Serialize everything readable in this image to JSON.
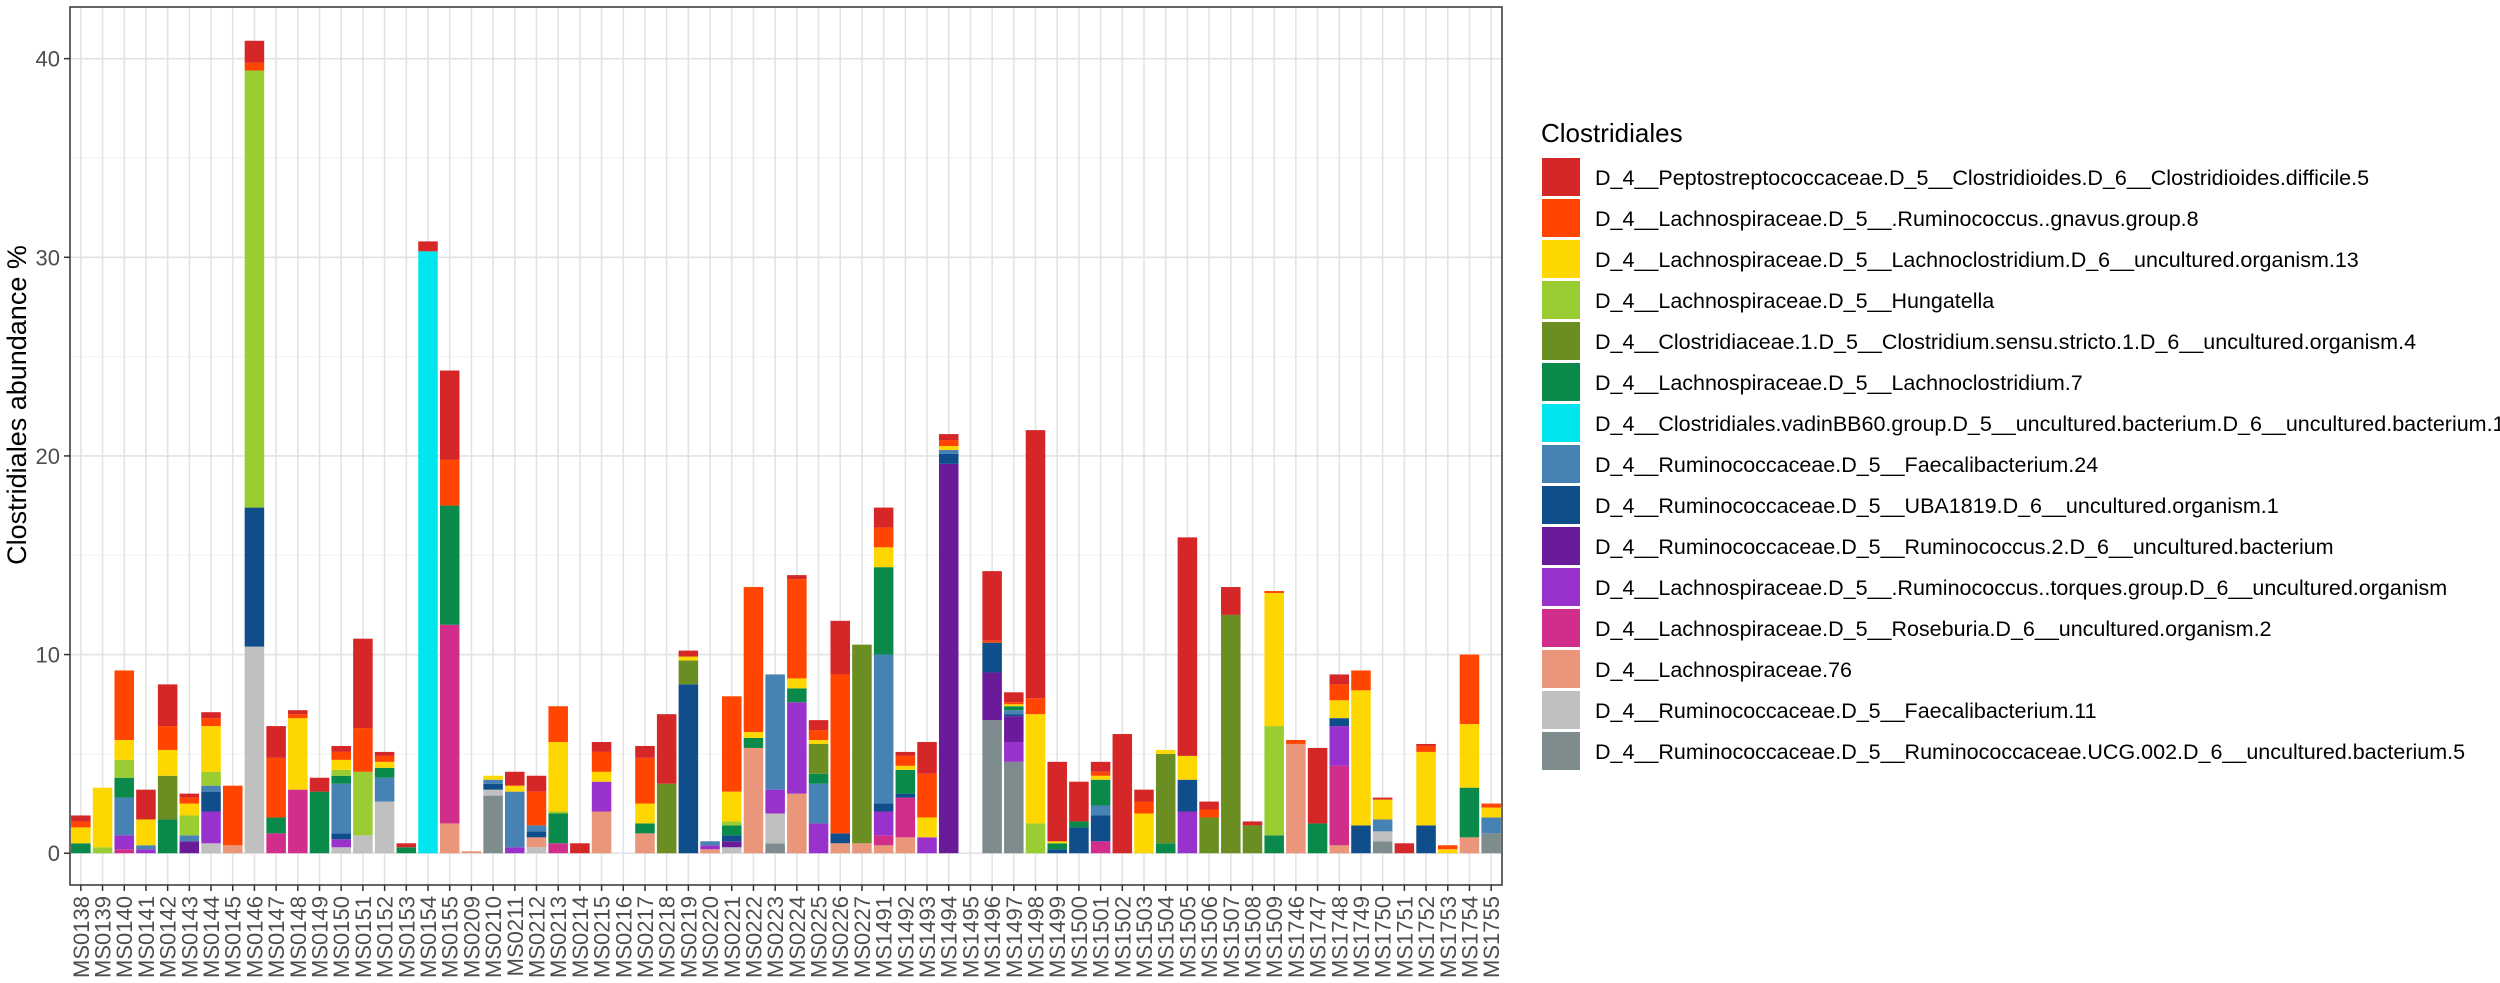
{
  "chart_data": {
    "type": "bar",
    "stacked": true,
    "title": "",
    "xlabel": "",
    "ylabel": "Clostridiales abundance %",
    "ylim": [
      -1.6,
      42.6
    ],
    "yticks": [
      0,
      10,
      20,
      30,
      40
    ],
    "grid": true,
    "legend_position": "right",
    "legend_title": "Clostridiales",
    "categories": [
      "MS0138",
      "MS0139",
      "MS0140",
      "MS0141",
      "MS0142",
      "MS0143",
      "MS0144",
      "MS0145",
      "MS0146",
      "MS0147",
      "MS0148",
      "MS0149",
      "MS0150",
      "MS0151",
      "MS0152",
      "MS0153",
      "MS0154",
      "MS0155",
      "MS0209",
      "MS0210",
      "MS0211",
      "MS0212",
      "MS0213",
      "MS0214",
      "MS0215",
      "MS0216",
      "MS0217",
      "MS0218",
      "MS0219",
      "MS0220",
      "MS0221",
      "MS0222",
      "MS0223",
      "MS0224",
      "MS0225",
      "MS0226",
      "MS0227",
      "MS1491",
      "MS1492",
      "MS1493",
      "MS1494",
      "MS1495",
      "MS1496",
      "MS1497",
      "MS1498",
      "MS1499",
      "MS1500",
      "MS1501",
      "MS1502",
      "MS1503",
      "MS1504",
      "MS1505",
      "MS1506",
      "MS1507",
      "MS1508",
      "MS1509",
      "MS1746",
      "MS1747",
      "MS1748",
      "MS1749",
      "MS1750",
      "MS1751",
      "MS1752",
      "MS1753",
      "MS1754",
      "MS1755"
    ],
    "series": [
      {
        "name": "D_4__Peptostreptococcaceae.D_5__Clostridioides.D_6__Clostridioides.difficile.5",
        "color": "#d62728",
        "values": [
          0.3,
          0,
          0,
          1.5,
          2.1,
          0.2,
          0.3,
          0,
          1.1,
          1.6,
          0.2,
          0.7,
          0.3,
          4.5,
          0.2,
          0.2,
          0.5,
          4.5,
          0,
          0,
          0.7,
          0.8,
          0,
          0.5,
          0.5,
          0,
          0.6,
          3.5,
          0.3,
          0,
          0,
          0,
          0,
          0.2,
          0.5,
          2.7,
          0,
          1.0,
          0.2,
          1.6,
          0.3,
          0,
          3.5,
          0.5,
          13.5,
          4.0,
          2.0,
          0.5,
          6.0,
          0.6,
          0,
          11.0,
          0.4,
          1.4,
          0.2,
          0,
          0,
          3.8,
          0.5,
          0,
          0.1,
          0.5,
          0.1,
          0,
          0,
          0
        ]
      },
      {
        "name": "D_4__Lachnospiraceae.D_5__.Ruminococcus..gnavus.group.8",
        "color": "#ff4500",
        "values": [
          0.3,
          0,
          3.5,
          0,
          1.2,
          0.3,
          0.4,
          3.0,
          0.4,
          3.0,
          0.2,
          0,
          0.4,
          2.2,
          0.3,
          0,
          0,
          2.3,
          0,
          0,
          0,
          1.7,
          1.8,
          0,
          1.0,
          0,
          2.3,
          0,
          0,
          0,
          4.8,
          7.3,
          0,
          5.0,
          0.5,
          8.0,
          0,
          1.0,
          0.5,
          2.2,
          0.3,
          0,
          0.1,
          0.1,
          0.8,
          0,
          0,
          0.2,
          0,
          0.6,
          0,
          0,
          0.4,
          0,
          0,
          0.1,
          0.2,
          0,
          0.8,
          1.0,
          0,
          0,
          0.3,
          0.2,
          3.5,
          0.2
        ]
      },
      {
        "name": "D_4__Lachnospiraceae.D_5__Lachnoclostridium.D_6__uncultured.organism.13",
        "color": "#ffd700",
        "values": [
          0.8,
          3.0,
          1.0,
          1.3,
          1.3,
          0.6,
          2.3,
          0,
          0,
          0,
          3.6,
          0,
          0.5,
          0,
          0.3,
          0,
          0,
          0,
          0,
          0.2,
          0.3,
          0,
          3.5,
          0,
          0.5,
          0,
          1.0,
          0,
          0.2,
          0,
          1.5,
          0.3,
          0,
          0.5,
          0.2,
          0,
          0,
          1.0,
          0.2,
          1.0,
          0.2,
          0,
          0,
          0.1,
          5.5,
          0.1,
          0,
          0.2,
          0,
          2.0,
          0.2,
          1.2,
          0,
          0,
          0,
          6.7,
          0,
          0,
          0.9,
          6.8,
          1.0,
          0,
          3.7,
          0.2,
          3.2,
          0.5
        ]
      },
      {
        "name": "D_4__Lachnospiraceae.D_5__Hungatella",
        "color": "#9acd32",
        "values": [
          0,
          0.3,
          0.9,
          0,
          0,
          1.0,
          0.7,
          0,
          22.0,
          0,
          0,
          0,
          0.3,
          3.2,
          0,
          0,
          0,
          0,
          0,
          0,
          0,
          0,
          0.1,
          0,
          0,
          0,
          0,
          0,
          0,
          0,
          0.2,
          0,
          0,
          0,
          0,
          0,
          0,
          0,
          0,
          0,
          0,
          0,
          0,
          0,
          1.5,
          0,
          0,
          0,
          0,
          0,
          0,
          0,
          0,
          0,
          0,
          5.5,
          0,
          0,
          0,
          0,
          0,
          0,
          0,
          0,
          0,
          0
        ]
      },
      {
        "name": "D_4__Clostridiaceae.1.D_5__Clostridium.sensu.stricto.1.D_6__uncultured.organism.4",
        "color": "#6b8e23",
        "values": [
          0,
          0,
          0,
          0,
          2.2,
          0,
          0,
          0,
          0,
          0,
          0,
          0,
          0,
          0,
          0,
          0,
          0,
          0,
          0,
          0,
          0,
          0,
          0,
          0,
          0,
          0,
          0,
          3.5,
          1.2,
          0,
          0,
          0,
          0,
          0,
          1.5,
          0,
          10.0,
          0,
          0,
          0,
          0,
          0,
          0,
          0,
          0,
          0,
          0,
          0,
          0,
          0,
          4.5,
          0,
          1.8,
          12.0,
          1.4,
          0,
          0,
          0,
          0,
          0,
          0,
          0,
          0,
          0,
          0,
          0
        ]
      },
      {
        "name": "D_4__Lachnospiraceae.D_5__Lachnoclostridium.7",
        "color": "#0a8a4a",
        "values": [
          0.5,
          0,
          1.0,
          0,
          1.7,
          0,
          0,
          0,
          0,
          0.8,
          0,
          3.1,
          0.4,
          0,
          0.5,
          0.3,
          0,
          6.0,
          0,
          0,
          0,
          0,
          1.5,
          0,
          0,
          0,
          0.5,
          0,
          0,
          0,
          0.5,
          0.5,
          0,
          0.7,
          0.5,
          0,
          0,
          4.4,
          1.2,
          0,
          0,
          0,
          0,
          0.2,
          0,
          0.3,
          0.3,
          1.3,
          0,
          0,
          0.5,
          0,
          0,
          0,
          0,
          0.9,
          0,
          1.5,
          0,
          0,
          0,
          0,
          0,
          0,
          2.5,
          0
        ]
      },
      {
        "name": "D_4__Clostridiales.vadinBB60.group.D_5__uncultured.bacterium.D_6__uncultured.bacterium.1",
        "color": "#00e5ee",
        "values": [
          0,
          0,
          0,
          0,
          0,
          0,
          0,
          0,
          0,
          0,
          0,
          0,
          0,
          0,
          0,
          0,
          30.3,
          0,
          0,
          0,
          0,
          0,
          0,
          0,
          0,
          0,
          0,
          0,
          0,
          0,
          0,
          0,
          0,
          0,
          0,
          0,
          0,
          0,
          0,
          0,
          0,
          0,
          0,
          0,
          0,
          0,
          0,
          0,
          0,
          0,
          0,
          0,
          0,
          0,
          0,
          0,
          0,
          0,
          0,
          0,
          0,
          0,
          0,
          0,
          0,
          0
        ]
      },
      {
        "name": "D_4__Ruminococcaceae.D_5__Faecalibacterium.24",
        "color": "#4682b4",
        "values": [
          0,
          0,
          1.9,
          0.2,
          0,
          0.3,
          0.3,
          0,
          0,
          0,
          0,
          0,
          2.5,
          0,
          1.2,
          0,
          0,
          0,
          0,
          0.2,
          2.8,
          0.3,
          0,
          0,
          0,
          0,
          0,
          0,
          0,
          0.2,
          0,
          0,
          5.8,
          0,
          2.0,
          0,
          0,
          7.5,
          0,
          0,
          0.2,
          0,
          0,
          0.2,
          0,
          0,
          0,
          0.5,
          0,
          0,
          0,
          0,
          0,
          0,
          0,
          0,
          0,
          0,
          0,
          0,
          0.6,
          0,
          0,
          0,
          0,
          0.8
        ]
      },
      {
        "name": "D_4__Ruminococcaceae.D_5__UBA1819.D_6__uncultured.organism.1",
        "color": "#104e8b",
        "values": [
          0,
          0,
          0,
          0,
          0,
          0,
          1.0,
          0,
          7.0,
          0,
          0,
          0,
          0.3,
          0,
          0,
          0,
          0,
          0,
          0,
          0.3,
          0,
          0.3,
          0,
          0,
          0,
          0,
          0,
          0,
          8.5,
          0,
          0.3,
          0,
          0,
          0,
          0,
          0.5,
          0,
          0.4,
          0.2,
          0,
          0.5,
          0,
          1.5,
          0.1,
          0,
          0.2,
          1.3,
          1.3,
          0,
          0,
          0,
          1.6,
          0,
          0,
          0,
          0,
          0,
          0,
          0.4,
          1.4,
          0,
          0,
          1.4,
          0,
          0,
          0
        ]
      },
      {
        "name": "D_4__Ruminococcaceae.D_5__Ruminococcus.2.D_6__uncultured.bacterium",
        "color": "#6a1b9a",
        "values": [
          0,
          0,
          0,
          0,
          0,
          0.6,
          0,
          0,
          0,
          0,
          0,
          0,
          0,
          0,
          0,
          0,
          0,
          0,
          0,
          0,
          0,
          0,
          0,
          0,
          0,
          0,
          0,
          0,
          0,
          0,
          0.3,
          0,
          0,
          0,
          0,
          0,
          0,
          0,
          0,
          0,
          19.6,
          0,
          2.4,
          1.3,
          0,
          0,
          0,
          0,
          0,
          0,
          0,
          0,
          0,
          0,
          0,
          0,
          0,
          0,
          0,
          0,
          0,
          0,
          0,
          0,
          0,
          0
        ]
      },
      {
        "name": "D_4__Lachnospiraceae.D_5__.Ruminococcus..torques.group.D_6__uncultured.organism",
        "color": "#9932cc",
        "values": [
          0,
          0,
          0.7,
          0.2,
          0,
          0,
          1.6,
          0,
          0,
          0,
          0,
          0,
          0.4,
          0,
          0,
          0,
          0,
          0,
          0,
          0,
          0.3,
          0,
          0,
          0,
          1.5,
          0,
          0,
          0,
          0,
          0.2,
          0,
          0,
          1.2,
          4.6,
          1.5,
          0,
          0,
          1.2,
          0,
          0.8,
          0,
          0,
          0,
          1.0,
          0,
          0,
          0,
          0,
          0,
          0,
          0,
          2.1,
          0,
          0,
          0,
          0,
          0,
          0,
          2.0,
          0,
          0,
          0,
          0,
          0,
          0,
          0
        ]
      },
      {
        "name": "D_4__Lachnospiraceae.D_5__Roseburia.D_6__uncultured.organism.2",
        "color": "#d12e8c",
        "values": [
          0,
          0,
          0.2,
          0,
          0,
          0,
          0,
          0,
          0,
          1.0,
          3.2,
          0,
          0,
          0,
          0,
          0,
          0,
          10.0,
          0,
          0,
          0,
          0,
          0.5,
          0,
          0,
          0,
          0,
          0,
          0,
          0,
          0,
          0,
          0,
          0,
          0,
          0,
          0,
          0.5,
          2.0,
          0,
          0,
          0,
          0,
          0,
          0,
          0,
          0,
          0.6,
          0,
          0,
          0,
          0,
          0,
          0,
          0,
          0,
          0,
          0,
          4.0,
          0,
          0,
          0,
          0,
          0,
          0,
          0
        ]
      },
      {
        "name": "D_4__Lachnospiraceae.76",
        "color": "#e9967a",
        "values": [
          0,
          0,
          0,
          0,
          0,
          0,
          0,
          0.4,
          0,
          0,
          0,
          0,
          0,
          0,
          0,
          0,
          0,
          1.5,
          0.1,
          0,
          0,
          0.5,
          0,
          0,
          2.1,
          0,
          1.0,
          0,
          0,
          0.2,
          0,
          5.3,
          0,
          3.0,
          0,
          0.5,
          0.5,
          0.4,
          0.8,
          0,
          0,
          0,
          0,
          0,
          0,
          0,
          0,
          0,
          0,
          0,
          0,
          0,
          0,
          0,
          0,
          0,
          5.5,
          0,
          0.4,
          0,
          0,
          0,
          0,
          0,
          0.8,
          0
        ]
      },
      {
        "name": "D_4__Ruminococcaceae.D_5__Faecalibacterium.11",
        "color": "#c0c0c0",
        "values": [
          0,
          0,
          0,
          0,
          0,
          0,
          0.5,
          0,
          10.4,
          0,
          0,
          0,
          0.3,
          0.9,
          2.6,
          0,
          0,
          0,
          0,
          0.3,
          0,
          0.3,
          0,
          0,
          0,
          0,
          0,
          0,
          0,
          0,
          0.3,
          0,
          1.5,
          0,
          0,
          0,
          0,
          0,
          0,
          0,
          0,
          0,
          0,
          0,
          0,
          0,
          0,
          0,
          0,
          0,
          0,
          0,
          0,
          0,
          0,
          0,
          0,
          0,
          0,
          0,
          0.5,
          0,
          0,
          0,
          0,
          0
        ]
      },
      {
        "name": "D_4__Ruminococcaceae.D_5__Ruminococcaceae.UCG.002.D_6__uncultured.bacterium.5",
        "color": "#7f8c8d",
        "values": [
          0,
          0,
          0,
          0,
          0,
          0,
          0,
          0,
          0,
          0,
          0,
          0,
          0,
          0,
          0,
          0,
          0,
          0,
          0,
          2.9,
          0,
          0,
          0,
          0,
          0,
          0,
          0,
          0,
          0,
          0,
          0,
          0,
          0.5,
          0,
          0,
          0,
          0,
          0,
          0,
          0,
          0,
          0,
          6.7,
          4.6,
          0,
          0,
          0,
          0,
          0,
          0,
          0,
          0,
          0,
          0,
          0,
          0,
          0,
          0,
          0,
          0,
          0.6,
          0,
          0,
          0,
          0,
          1.0
        ]
      }
    ]
  }
}
